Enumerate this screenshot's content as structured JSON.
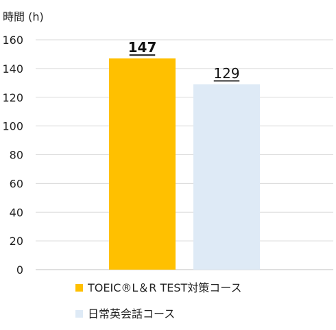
{
  "chart_data": {
    "type": "bar",
    "ylabel": "時間 (h)",
    "ylim": [
      0,
      160
    ],
    "yticks": [
      0,
      20,
      40,
      60,
      80,
      100,
      120,
      140,
      160
    ],
    "grid": true,
    "legend_position": "bottom",
    "series": [
      {
        "name": "TOEIC®L＆R TEST対策コース",
        "value": 147,
        "value_label": "147",
        "color": "#FFC000",
        "label_bold": true
      },
      {
        "name": "日常英会話コース",
        "value": 129,
        "value_label": "129",
        "color": "#DEEAF6",
        "label_bold": false
      }
    ]
  }
}
